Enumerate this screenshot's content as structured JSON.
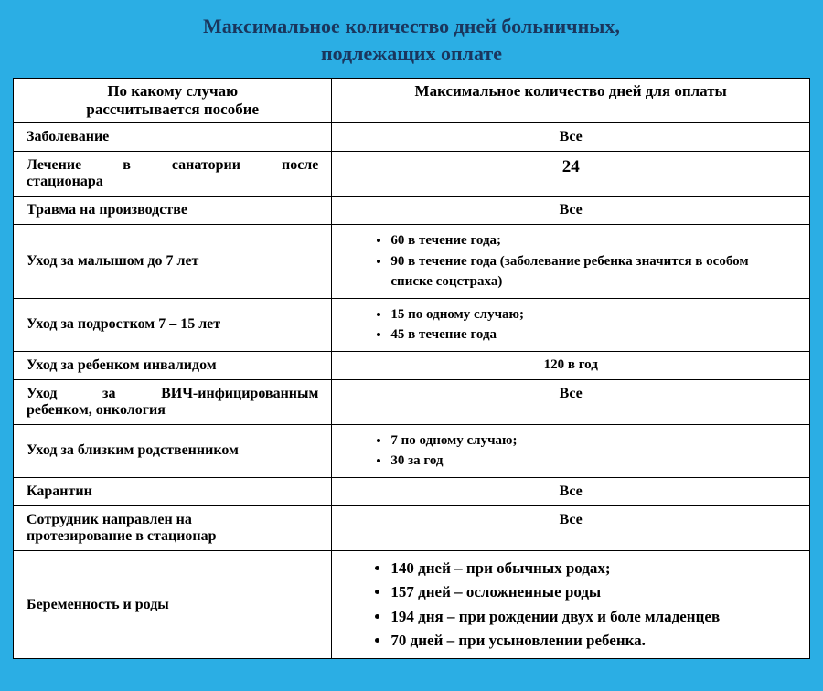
{
  "title_line1": "Максимальное количество дней больничных,",
  "title_line2": "подлежащих оплате",
  "table": {
    "headers": {
      "col1_line1": "По какому случаю",
      "col1_line2": "рассчитывается пособие",
      "col2": "Максимальное количество дней для оплаты"
    },
    "rows": {
      "r1_left": "Заболевание",
      "r1_right": "Все",
      "r2_left_line1": "Лечение в санатории после",
      "r2_left_line2": "стационара",
      "r2_right": "24",
      "r3_left": "Травма на производстве",
      "r3_right": "Все",
      "r4_left": "Уход за малышом до 7 лет",
      "r4_b1": "60 в течение года;",
      "r4_b2": "90 в течение года (заболевание ребенка значится в особом списке соцстраха)",
      "r5_left": "Уход за подростком 7 – 15 лет",
      "r5_b1": "15 по одному случаю;",
      "r5_b2": "45 в течение года",
      "r6_left": "Уход за ребенком инвалидом",
      "r6_right": "120 в год",
      "r7_left_line1": "Уход за ВИЧ-инфицированным",
      "r7_left_line2": "ребенком, онкология",
      "r7_right": "Все",
      "r8_left": "Уход за близким родственником",
      "r8_b1": "7 по одному случаю;",
      "r8_b2": "30 за год",
      "r9_left": "Карантин",
      "r9_right": "Все",
      "r10_left_line1": "Сотрудник направлен на",
      "r10_left_line2": "протезирование в стационар",
      "r10_right": "Все",
      "r11_left": "Беременность и роды",
      "r11_b1": "140 дней – при обычных родах;",
      "r11_b2": "157 дней – осложненные роды",
      "r11_b3": "194 дня – при рождении двух и боле младенцев",
      "r11_b4": "70 дней – при усыновлении ребенка."
    }
  },
  "colors": {
    "page_bg": "#2baee4",
    "table_bg": "#ffffff",
    "border": "#000000",
    "title_text": "#1a365d"
  }
}
